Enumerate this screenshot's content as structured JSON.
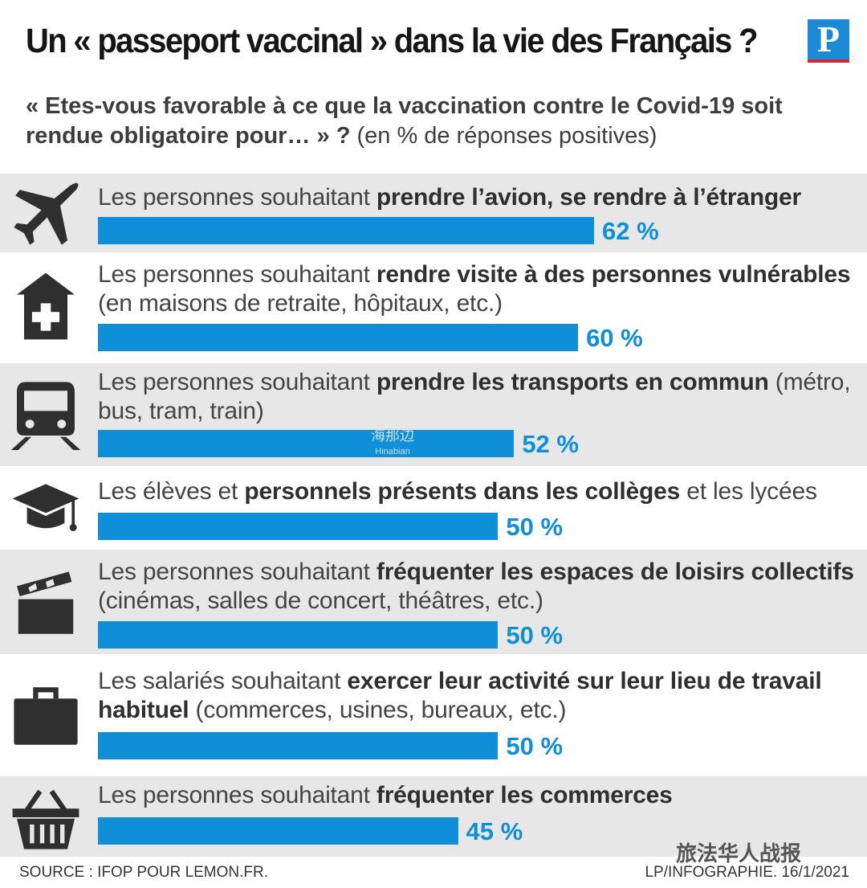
{
  "header": {
    "title": "Un « passeport vaccinal » dans la vie des Français ?",
    "logo_letter": "P"
  },
  "subtitle": {
    "question": "« Etes-vous favorable à ce que la vaccination contre le Covid-19 soit rendue obligatoire pour… » ?",
    "note": "(en % de réponses positives)"
  },
  "rows": [
    {
      "icon": "airplane-icon",
      "lead": "Les personnes souhaitant ",
      "bold": "prendre l’avion, se rendre à l’étranger",
      "tail": "",
      "value_label": "62 %"
    },
    {
      "icon": "hospital-icon",
      "lead": "Les personnes souhaitant ",
      "bold": "rendre visite à des personnes vulnérables",
      "tail": " (en maisons de retraite, hôpitaux, etc.)",
      "value_label": "60 %"
    },
    {
      "icon": "train-icon",
      "lead": "Les personnes souhaitant ",
      "bold": "prendre les transports en commun",
      "tail": " (métro, bus, tram, train)",
      "value_label": "52 %"
    },
    {
      "icon": "graduation-cap-icon",
      "lead": "Les élèves et ",
      "bold": "personnels présents dans les collèges",
      "tail": " et les lycées",
      "value_label": "50 %"
    },
    {
      "icon": "clapperboard-icon",
      "lead": "Les personnes souhaitant ",
      "bold": "fréquenter les espaces de loisirs collectifs",
      "tail": " (cinémas, salles de concert, théâtres, etc.)",
      "value_label": "50 %"
    },
    {
      "icon": "briefcase-icon",
      "lead": "Les salariés souhaitant ",
      "bold": "exercer leur activité sur leur lieu de travail habituel",
      "tail": " (commerces, usines, bureaux, etc.)",
      "value_label": "50 %"
    },
    {
      "icon": "shopping-basket-icon",
      "lead": "Les personnes souhaitant ",
      "bold": "fréquenter les commerces",
      "tail": "",
      "value_label": "45 %"
    }
  ],
  "chart_data": {
    "type": "bar",
    "orientation": "horizontal",
    "categories": [
      "Les personnes souhaitant prendre l’avion, se rendre à l’étranger",
      "Les personnes souhaitant rendre visite à des personnes vulnérables (en maisons de retraite, hôpitaux, etc.)",
      "Les personnes souhaitant prendre les transports en commun (métro, bus, tram, train)",
      "Les élèves et personnels présents dans les collèges et les lycées",
      "Les personnes souhaitant fréquenter les espaces de loisirs collectifs (cinémas, salles de concert, théâtres, etc.)",
      "Les salariés souhaitant exercer leur activité sur leur lieu de travail habituel (commerces, usines, bureaux, etc.)",
      "Les personnes souhaitant fréquenter les commerces"
    ],
    "values": [
      62,
      60,
      52,
      50,
      50,
      50,
      45
    ],
    "unit": "%",
    "bar_color": "#0f8fd8",
    "grid": false
  },
  "watermark": {
    "cn": "海那边",
    "latin": "Hinabian"
  },
  "badge": "旅法华人战报",
  "footer": {
    "source": "SOURCE : IFOP POUR LEMON.FR.",
    "credit": "LP/INFOGRAPHIE. 16/1/2021"
  }
}
